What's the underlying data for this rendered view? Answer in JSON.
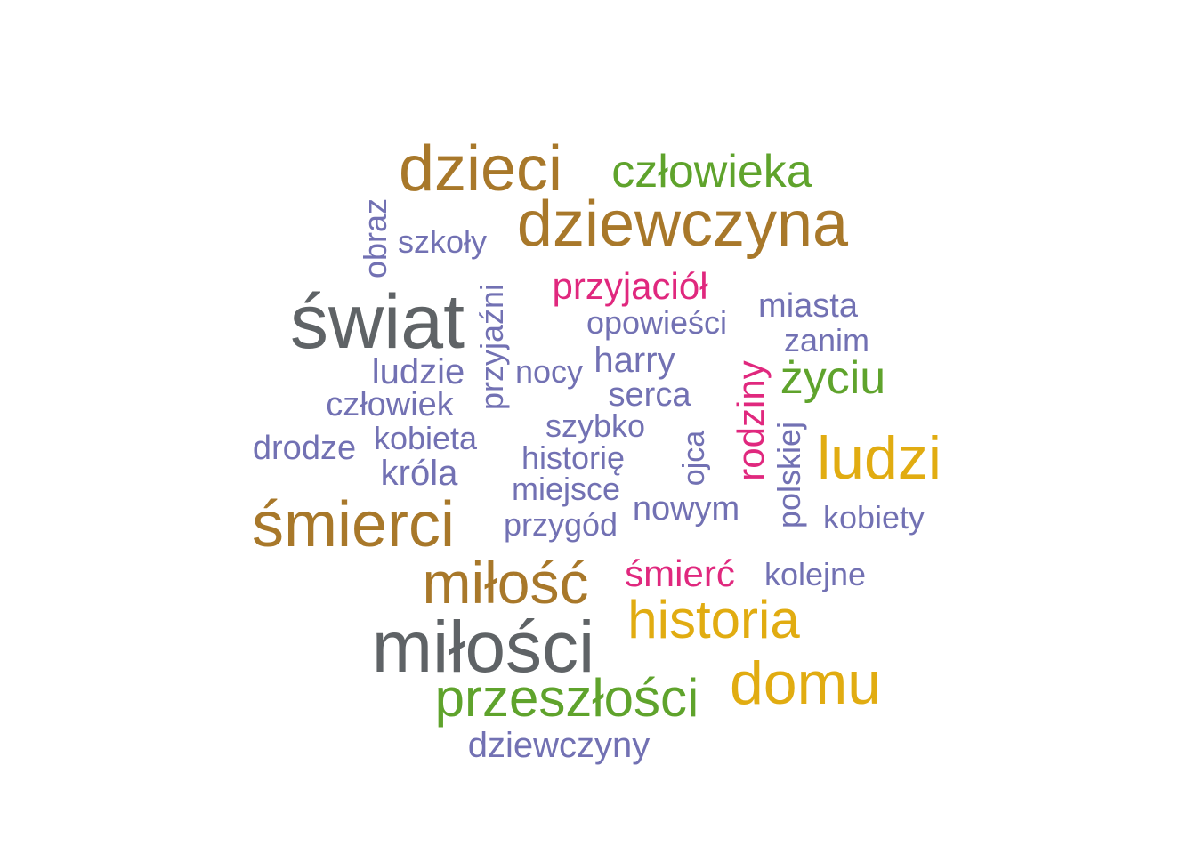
{
  "colors": {
    "gray": "#5f6366",
    "brown": "#a8782a",
    "green": "#5fa32c",
    "gold": "#e1ac11",
    "purple": "#7271b3",
    "pink": "#e0287e"
  },
  "words": [
    {
      "text": "dzieci",
      "color": "brown",
      "weight": 5,
      "orientation": "horizontal"
    },
    {
      "text": "człowieka",
      "color": "green",
      "weight": 4,
      "orientation": "horizontal"
    },
    {
      "text": "dziewczyna",
      "color": "brown",
      "weight": 5,
      "orientation": "horizontal"
    },
    {
      "text": "obraz",
      "color": "purple",
      "weight": 2,
      "orientation": "vertical"
    },
    {
      "text": "szkoły",
      "color": "purple",
      "weight": 2,
      "orientation": "horizontal"
    },
    {
      "text": "przyjaźni",
      "color": "purple",
      "weight": 2,
      "orientation": "vertical"
    },
    {
      "text": "przyjaciół",
      "color": "pink",
      "weight": 3,
      "orientation": "horizontal"
    },
    {
      "text": "miasta",
      "color": "purple",
      "weight": 2,
      "orientation": "horizontal"
    },
    {
      "text": "świat",
      "color": "gray",
      "weight": 6,
      "orientation": "horizontal"
    },
    {
      "text": "opowieści",
      "color": "purple",
      "weight": 2,
      "orientation": "horizontal"
    },
    {
      "text": "zanim",
      "color": "purple",
      "weight": 2,
      "orientation": "horizontal"
    },
    {
      "text": "ludzie",
      "color": "purple",
      "weight": 3,
      "orientation": "horizontal"
    },
    {
      "text": "nocy",
      "color": "purple",
      "weight": 2,
      "orientation": "horizontal"
    },
    {
      "text": "harry",
      "color": "purple",
      "weight": 2,
      "orientation": "horizontal"
    },
    {
      "text": "rodziny",
      "color": "pink",
      "weight": 3,
      "orientation": "vertical"
    },
    {
      "text": "życiu",
      "color": "green",
      "weight": 4,
      "orientation": "horizontal"
    },
    {
      "text": "serca",
      "color": "purple",
      "weight": 2,
      "orientation": "horizontal"
    },
    {
      "text": "człowiek",
      "color": "purple",
      "weight": 2,
      "orientation": "horizontal"
    },
    {
      "text": "szybko",
      "color": "purple",
      "weight": 2,
      "orientation": "horizontal"
    },
    {
      "text": "drodze",
      "color": "purple",
      "weight": 2,
      "orientation": "horizontal"
    },
    {
      "text": "kobieta",
      "color": "purple",
      "weight": 2,
      "orientation": "horizontal"
    },
    {
      "text": "ojca",
      "color": "purple",
      "weight": 2,
      "orientation": "vertical"
    },
    {
      "text": "polskiej",
      "color": "purple",
      "weight": 2,
      "orientation": "vertical"
    },
    {
      "text": "ludzi",
      "color": "gold",
      "weight": 5,
      "orientation": "horizontal"
    },
    {
      "text": "historię",
      "color": "purple",
      "weight": 2,
      "orientation": "horizontal"
    },
    {
      "text": "króla",
      "color": "purple",
      "weight": 2,
      "orientation": "horizontal"
    },
    {
      "text": "miejsce",
      "color": "purple",
      "weight": 2,
      "orientation": "horizontal"
    },
    {
      "text": "nowym",
      "color": "purple",
      "weight": 2,
      "orientation": "horizontal"
    },
    {
      "text": "kobiety",
      "color": "purple",
      "weight": 2,
      "orientation": "horizontal"
    },
    {
      "text": "śmierci",
      "color": "brown",
      "weight": 5,
      "orientation": "horizontal"
    },
    {
      "text": "przygód",
      "color": "purple",
      "weight": 2,
      "orientation": "horizontal"
    },
    {
      "text": "miłość",
      "color": "brown",
      "weight": 5,
      "orientation": "horizontal"
    },
    {
      "text": "śmierć",
      "color": "pink",
      "weight": 3,
      "orientation": "horizontal"
    },
    {
      "text": "kolejne",
      "color": "purple",
      "weight": 2,
      "orientation": "horizontal"
    },
    {
      "text": "historia",
      "color": "gold",
      "weight": 4,
      "orientation": "horizontal"
    },
    {
      "text": "miłości",
      "color": "gray",
      "weight": 6,
      "orientation": "horizontal"
    },
    {
      "text": "domu",
      "color": "gold",
      "weight": 5,
      "orientation": "horizontal"
    },
    {
      "text": "przeszłości",
      "color": "green",
      "weight": 4,
      "orientation": "horizontal"
    },
    {
      "text": "dziewczyny",
      "color": "purple",
      "weight": 2,
      "orientation": "horizontal"
    }
  ]
}
